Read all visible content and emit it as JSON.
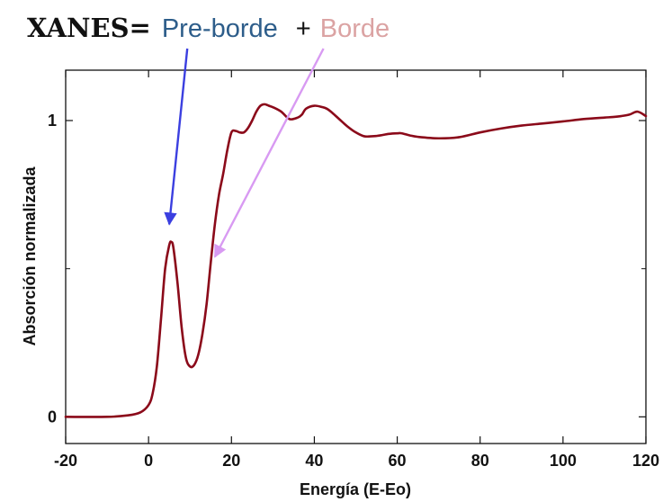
{
  "chart_data": {
    "type": "line",
    "title": "",
    "xlabel": "Energía (E-Eo)",
    "ylabel": "Absorción normalizada",
    "xlim": [
      -20,
      120
    ],
    "ylim": [
      -0.09,
      1.17
    ],
    "x_ticks": [
      -20,
      0,
      20,
      40,
      60,
      80,
      100,
      120
    ],
    "x_tick_labels": [
      "-20",
      "0",
      "20",
      "40",
      "60",
      "80",
      "100",
      "120"
    ],
    "y_ticks": [
      0,
      1
    ],
    "y_tick_labels": [
      "0",
      "1"
    ],
    "y_minor_ticks": [
      0.5
    ],
    "grid": false,
    "line_color": "#8b0a1a",
    "series": [
      {
        "x": [
          -20,
          -10,
          -5,
          -2,
          0,
          1,
          2,
          3,
          4,
          5,
          5.5,
          6,
          7,
          8,
          9,
          10,
          11,
          12,
          13,
          14,
          15,
          16,
          17,
          18,
          19,
          20,
          21,
          22,
          23,
          24,
          25,
          26,
          27,
          28,
          29,
          30,
          32,
          34,
          36,
          37,
          38,
          40,
          42,
          43,
          44,
          46,
          48,
          50,
          52,
          54,
          55,
          56,
          58,
          60,
          61,
          63,
          65,
          70,
          75,
          80,
          85,
          90,
          95,
          100,
          105,
          110,
          112,
          114,
          116,
          118,
          120
        ],
        "y": [
          0,
          0,
          0.005,
          0.015,
          0.04,
          0.08,
          0.17,
          0.33,
          0.5,
          0.58,
          0.59,
          0.57,
          0.45,
          0.3,
          0.2,
          0.17,
          0.175,
          0.21,
          0.28,
          0.38,
          0.52,
          0.65,
          0.75,
          0.82,
          0.9,
          0.96,
          0.965,
          0.96,
          0.96,
          0.975,
          1.0,
          1.03,
          1.05,
          1.055,
          1.05,
          1.045,
          1.03,
          1.005,
          1.01,
          1.02,
          1.04,
          1.05,
          1.045,
          1.04,
          1.03,
          1.005,
          0.98,
          0.96,
          0.947,
          0.947,
          0.948,
          0.95,
          0.955,
          0.957,
          0.957,
          0.95,
          0.945,
          0.94,
          0.944,
          0.96,
          0.973,
          0.983,
          0.99,
          0.997,
          1.005,
          1.01,
          1.012,
          1.015,
          1.02,
          1.03,
          1.015
        ]
      }
    ]
  },
  "annotation": {
    "prefix": "XANES=",
    "pre_edge_label": "Pre-borde",
    "plus": "+",
    "edge_label": "Borde",
    "pre_edge_color": "#2d5d8a",
    "edge_color": "#dba3a3",
    "plus_color": "#111111",
    "pre_edge_arrow_color": "#3b3fe0",
    "edge_arrow_color": "#d89af2",
    "pre_edge_arrow_tip": {
      "x": 5,
      "y": 0.65
    },
    "edge_arrow_tip": {
      "x": 16,
      "y": 0.54
    }
  }
}
